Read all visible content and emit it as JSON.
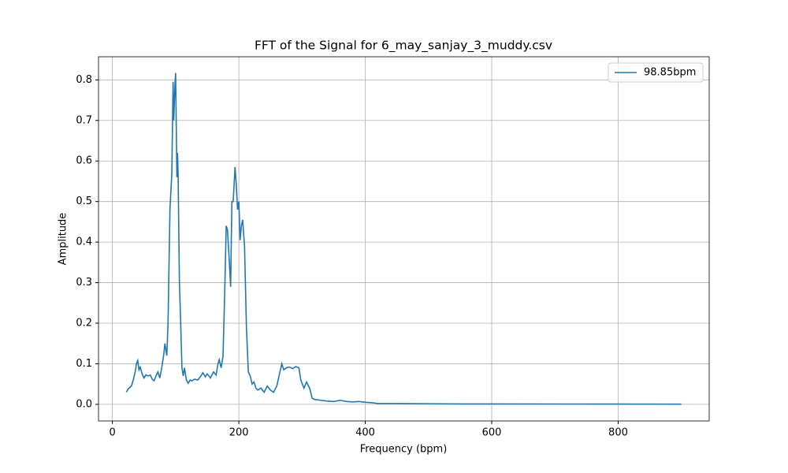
{
  "chart_data": {
    "type": "line",
    "title": "FFT of the Signal for 6_may_sanjay_3_muddy.csv",
    "xlabel": "Frequency (bpm)",
    "ylabel": "Amplitude",
    "x": [
      22,
      25,
      30,
      33,
      36,
      38,
      40,
      42,
      44,
      47,
      50,
      53,
      56,
      60,
      63,
      66,
      69,
      72,
      75,
      78,
      81,
      83,
      86,
      88,
      91,
      94,
      96,
      97,
      99,
      100,
      102,
      103,
      104,
      106,
      108,
      110,
      112,
      114,
      117,
      120,
      123,
      126,
      130,
      135,
      140,
      143,
      147,
      150,
      155,
      160,
      164,
      167,
      169,
      172,
      175,
      178,
      180,
      182,
      185,
      187,
      189,
      191,
      194,
      196,
      198,
      200,
      202,
      204,
      206,
      209,
      212,
      215,
      218,
      221,
      224,
      227,
      230,
      235,
      240,
      245,
      250,
      255,
      260,
      265,
      268,
      271,
      275,
      280,
      285,
      290,
      295,
      298,
      303,
      307,
      312,
      316,
      320,
      330,
      340,
      350,
      360,
      370,
      380,
      390,
      400,
      410,
      420,
      450,
      500,
      550,
      600,
      700,
      800,
      900
    ],
    "series": [
      {
        "name": "98.85bpm",
        "color": "#1f77b4",
        "values": [
          0.03,
          0.038,
          0.045,
          0.06,
          0.08,
          0.1,
          0.108,
          0.085,
          0.092,
          0.075,
          0.065,
          0.073,
          0.07,
          0.072,
          0.062,
          0.058,
          0.07,
          0.08,
          0.065,
          0.09,
          0.12,
          0.15,
          0.12,
          0.2,
          0.48,
          0.57,
          0.795,
          0.7,
          0.79,
          0.817,
          0.56,
          0.62,
          0.56,
          0.3,
          0.2,
          0.09,
          0.07,
          0.09,
          0.06,
          0.052,
          0.06,
          0.058,
          0.062,
          0.06,
          0.07,
          0.078,
          0.068,
          0.075,
          0.065,
          0.08,
          0.072,
          0.1,
          0.11,
          0.09,
          0.12,
          0.3,
          0.44,
          0.43,
          0.35,
          0.29,
          0.5,
          0.5,
          0.585,
          0.54,
          0.48,
          0.5,
          0.405,
          0.44,
          0.455,
          0.39,
          0.19,
          0.08,
          0.07,
          0.05,
          0.055,
          0.04,
          0.035,
          0.04,
          0.03,
          0.045,
          0.035,
          0.03,
          0.045,
          0.08,
          0.1,
          0.085,
          0.09,
          0.092,
          0.088,
          0.093,
          0.09,
          0.06,
          0.04,
          0.055,
          0.04,
          0.015,
          0.012,
          0.01,
          0.008,
          0.007,
          0.01,
          0.007,
          0.006,
          0.007,
          0.005,
          0.004,
          0.002,
          0.002,
          0.0015,
          0.001,
          0.001,
          0.0008,
          0.0006,
          0.0005
        ]
      }
    ],
    "xlim": [
      -22,
      944
    ],
    "ylim": [
      -0.041,
      0.857
    ],
    "xticks": [
      0,
      200,
      400,
      600,
      800
    ],
    "yticks": [
      {
        "value": 0,
        "label": "0.0"
      },
      0.1,
      0.2,
      0.3,
      0.4,
      0.5,
      0.6,
      0.7,
      0.8
    ],
    "grid": true,
    "legend": "upper right"
  }
}
